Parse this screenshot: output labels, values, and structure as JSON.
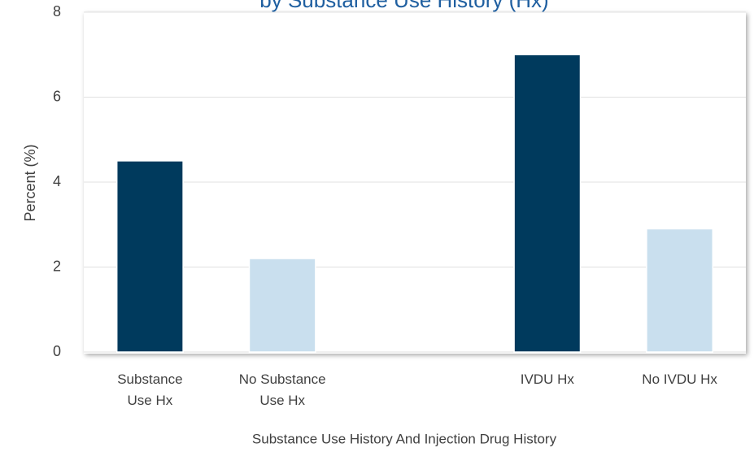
{
  "chart_data": {
    "type": "bar",
    "title": "by Substance Use History (Hx)",
    "categories": [
      "Substance Use Hx",
      "No Substance Use Hx",
      null,
      "IVDU Hx",
      "No IVDU Hx"
    ],
    "values": [
      4.5,
      2.2,
      null,
      7.0,
      2.9
    ],
    "colors": [
      "#003A5D",
      "#C9DFEE",
      null,
      "#003A5D",
      "#C9DFEE"
    ],
    "x_label": "Substance Use History And Injection Drug History",
    "y_label": "Percent (%)",
    "ylim": [
      0,
      8
    ],
    "yticks": [
      0,
      2,
      4,
      6,
      8
    ],
    "grid": true
  }
}
